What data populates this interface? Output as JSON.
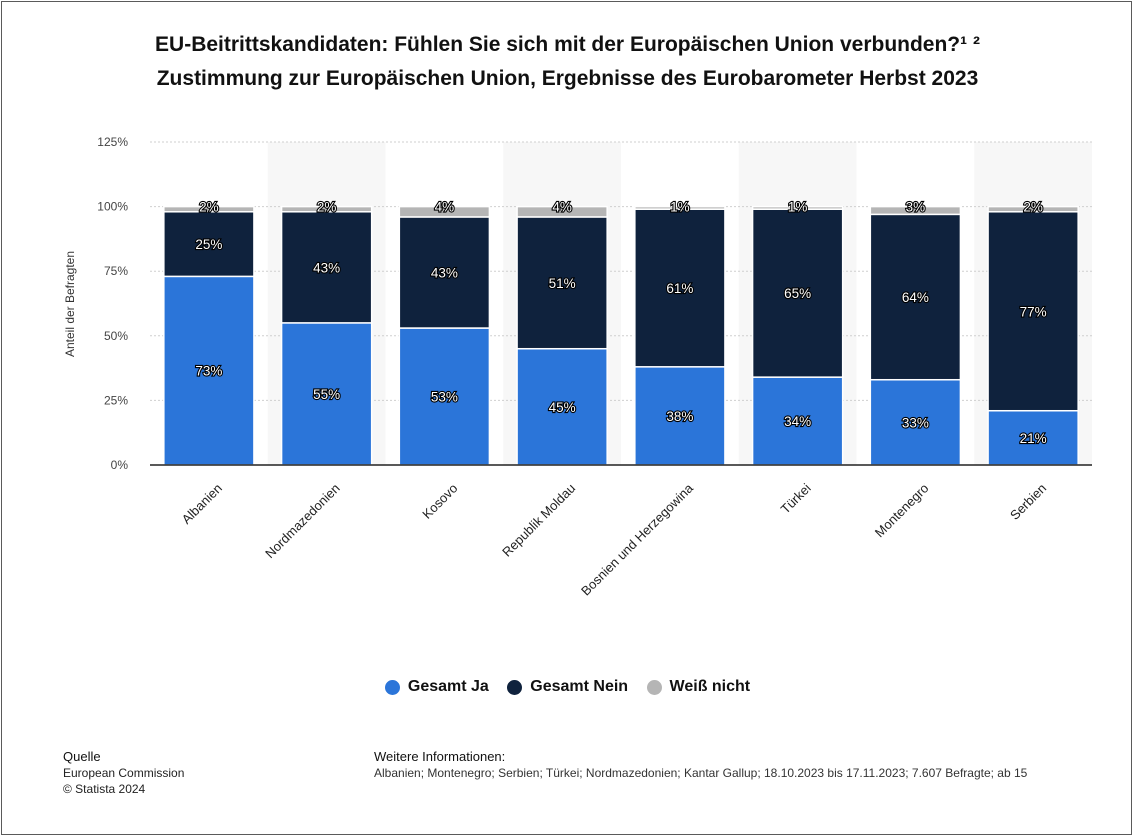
{
  "title_line1": "EU-Beitrittskandidaten: Fühlen Sie sich mit der Europäischen Union verbunden?¹ ²",
  "title_line2": "Zustimmung zur Europäischen Union, Ergebnisse des Eurobarometer Herbst 2023",
  "legend": [
    {
      "label": "Gesamt Ja",
      "color": "#2b75d9"
    },
    {
      "label": "Gesamt Nein",
      "color": "#0f223d"
    },
    {
      "label": "Weiß nicht",
      "color": "#b5b5b5"
    }
  ],
  "footer": {
    "source_heading": "Quelle",
    "source_line1": "European Commission",
    "source_line2": "© Statista 2024",
    "info_heading": "Weitere Informationen:",
    "info_text": "Albanien; Montenegro; Serbien; Türkei; Nordmazedonien; Kantar Gallup; 18.10.2023 bis 17.11.2023; 7.607 Befragte; ab 15"
  },
  "chart_data": {
    "type": "bar",
    "stacked": true,
    "title": "EU-Beitrittskandidaten: Fühlen Sie sich mit der Europäischen Union verbunden?¹ ²",
    "subtitle": "Zustimmung zur Europäischen Union, Ergebnisse des Eurobarometer Herbst 2023",
    "ylabel": "Anteil der Befragten",
    "xlabel": "",
    "ylim": [
      0,
      125
    ],
    "yticks": [
      "0%",
      "25%",
      "50%",
      "75%",
      "100%",
      "125%"
    ],
    "categories": [
      "Albanien",
      "Nordmazedonien",
      "Kosovo",
      "Republik Moldau",
      "Bosnien und Herzegowina",
      "Türkei",
      "Montenegro",
      "Serbien"
    ],
    "series": [
      {
        "name": "Gesamt Ja",
        "color": "#2b75d9",
        "values": [
          73,
          55,
          53,
          45,
          38,
          34,
          33,
          21
        ]
      },
      {
        "name": "Gesamt Nein",
        "color": "#0f223d",
        "values": [
          25,
          43,
          43,
          51,
          61,
          65,
          64,
          77
        ]
      },
      {
        "name": "Weiß nicht",
        "color": "#b5b5b5",
        "values": [
          2,
          2,
          4,
          4,
          1,
          1,
          3,
          2
        ]
      }
    ],
    "value_labels": [
      [
        "73%",
        "55%",
        "53%",
        "45%",
        "38%",
        "34%",
        "33%",
        "21%"
      ],
      [
        "25%",
        "43%",
        "43%",
        "51%",
        "61%",
        "65%",
        "64%",
        "77%"
      ],
      [
        "2%",
        "2%",
        "4%",
        "4%",
        "1%",
        "1%",
        "3%",
        "2%"
      ]
    ],
    "grid": true,
    "legend_position": "bottom"
  }
}
